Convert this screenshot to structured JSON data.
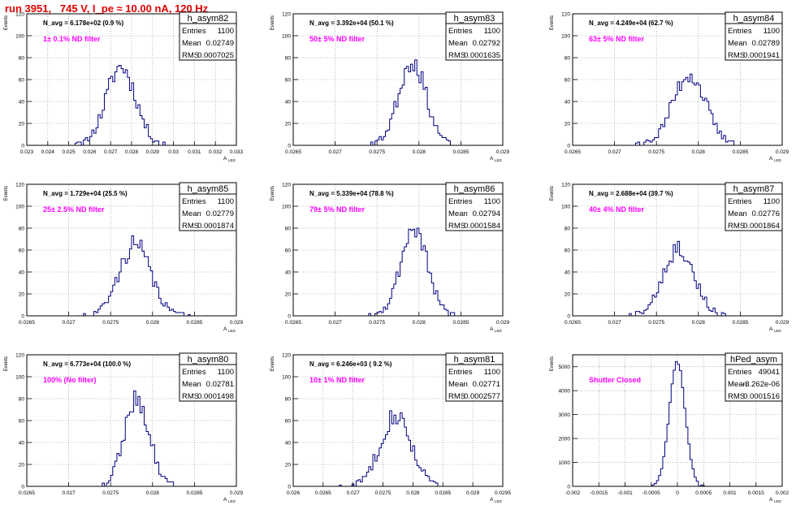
{
  "page": {
    "title": "run 3951,   745 V, I_pe ≈ 10.00 nA, 120 Hz"
  },
  "colors": {
    "histogram": "#000080",
    "title": "#e00000",
    "annotation": "#ff00ff",
    "grid": "#888888"
  },
  "chart_data": [
    {
      "type": "histogram",
      "hist_name": "h_asym82",
      "ylabel": "Events",
      "xlabel": "A",
      "xlabel_sub": "LED",
      "stats": {
        "entries_label": "Entries",
        "entries": "1100",
        "mean_label": "Mean",
        "mean": "0.02749",
        "rms_label": "RMS",
        "rms": "0.0007025"
      },
      "navg": "N_avg = 6.178e+02 (0.9 %)",
      "annotation": "1± 0.1% ND filter",
      "xlim": [
        0.023,
        0.033
      ],
      "ylim": [
        0,
        120
      ],
      "xticks": [
        "0.023",
        "0.024",
        "0.025",
        "0.026",
        "0.027",
        "0.028",
        "0.029",
        "0.03",
        "0.031",
        "0.032",
        "0.033"
      ],
      "yticks": [
        "0",
        "20",
        "40",
        "60",
        "80",
        "100",
        "120"
      ],
      "mean": 0.02749,
      "sigma": 0.0007025,
      "peak": 72,
      "seed": 11
    },
    {
      "type": "histogram",
      "hist_name": "h_asym83",
      "ylabel": "Events",
      "xlabel": "A",
      "xlabel_sub": "LED",
      "stats": {
        "entries_label": "Entries",
        "entries": "1100",
        "mean_label": "Mean",
        "mean": "0.02792",
        "rms_label": "RMS",
        "rms": "0.0001635"
      },
      "navg": "N_avg = 3.392e+04 (50.1 %)",
      "annotation": "50± 5% ND filter",
      "xlim": [
        0.0265,
        0.029
      ],
      "ylim": [
        0,
        120
      ],
      "xticks": [
        "0.0265",
        "0.027",
        "0.0275",
        "0.028",
        "0.0285",
        "0.029"
      ],
      "yticks": [
        "0",
        "20",
        "40",
        "60",
        "80",
        "100",
        "120"
      ],
      "mean": 0.02792,
      "sigma": 0.0001635,
      "peak": 77,
      "seed": 23
    },
    {
      "type": "histogram",
      "hist_name": "h_asym84",
      "ylabel": "Events",
      "xlabel": "A",
      "xlabel_sub": "LED",
      "stats": {
        "entries_label": "Entries",
        "entries": "1100",
        "mean_label": "Mean",
        "mean": "0.02789",
        "rms_label": "RMS",
        "rms": "0.0001941"
      },
      "navg": "N_avg = 4.249e+04 (62.7 %)",
      "annotation": "63± 5% ND filter",
      "xlim": [
        0.0265,
        0.029
      ],
      "ylim": [
        0,
        120
      ],
      "xticks": [
        "0.0265",
        "0.027",
        "0.0275",
        "0.028",
        "0.0285",
        "0.029"
      ],
      "yticks": [
        "0",
        "20",
        "40",
        "60",
        "80",
        "100",
        "120"
      ],
      "mean": 0.02789,
      "sigma": 0.0001941,
      "peak": 65,
      "seed": 37
    },
    {
      "type": "histogram",
      "hist_name": "h_asym85",
      "ylabel": "Events",
      "xlabel": "A",
      "xlabel_sub": "LED",
      "stats": {
        "entries_label": "Entries",
        "entries": "1100",
        "mean_label": "Mean",
        "mean": "0.02779",
        "rms_label": "RMS",
        "rms": "0.0001874"
      },
      "navg": "N_avg = 1.729e+04 (25.5 %)",
      "annotation": "25± 2.5% ND filter",
      "xlim": [
        0.0265,
        0.029
      ],
      "ylim": [
        0,
        120
      ],
      "xticks": [
        "0.0265",
        "0.027",
        "0.0275",
        "0.028",
        "0.0285",
        "0.029"
      ],
      "yticks": [
        "0",
        "20",
        "40",
        "60",
        "80",
        "100",
        "120"
      ],
      "mean": 0.02779,
      "sigma": 0.0001874,
      "peak": 65,
      "seed": 41
    },
    {
      "type": "histogram",
      "hist_name": "h_asym86",
      "ylabel": "Events",
      "xlabel": "A",
      "xlabel_sub": "LED",
      "stats": {
        "entries_label": "Entries",
        "entries": "1100",
        "mean_label": "Mean",
        "mean": "0.02794",
        "rms_label": "RMS",
        "rms": "0.0001584"
      },
      "navg": "N_avg = 5.339e+04 (78.8 %)",
      "annotation": "79± 5% ND filter",
      "xlim": [
        0.0265,
        0.029
      ],
      "ylim": [
        0,
        120
      ],
      "xticks": [
        "0.0265",
        "0.027",
        "0.0275",
        "0.028",
        "0.0285",
        "0.029"
      ],
      "yticks": [
        "0",
        "20",
        "40",
        "60",
        "80",
        "100",
        "120"
      ],
      "mean": 0.02794,
      "sigma": 0.0001584,
      "peak": 80,
      "seed": 53
    },
    {
      "type": "histogram",
      "hist_name": "h_asym87",
      "ylabel": "Events",
      "xlabel": "A",
      "xlabel_sub": "LED",
      "stats": {
        "entries_label": "Entries",
        "entries": "1100",
        "mean_label": "Mean",
        "mean": "0.02776",
        "rms_label": "RMS",
        "rms": "0.0001864"
      },
      "navg": "N_avg = 2.688e+04 (39.7 %)",
      "annotation": "40± 4% ND filter",
      "xlim": [
        0.0265,
        0.029
      ],
      "ylim": [
        0,
        120
      ],
      "xticks": [
        "0.0265",
        "0.027",
        "0.0275",
        "0.028",
        "0.0285",
        "0.029"
      ],
      "yticks": [
        "0",
        "20",
        "40",
        "60",
        "80",
        "100",
        "120"
      ],
      "mean": 0.02776,
      "sigma": 0.0001864,
      "peak": 62,
      "seed": 67
    },
    {
      "type": "histogram",
      "hist_name": "h_asym80",
      "ylabel": "Events",
      "xlabel": "A",
      "xlabel_sub": "LED",
      "stats": {
        "entries_label": "Entries",
        "entries": "1100",
        "mean_label": "Mean",
        "mean": "0.02781",
        "rms_label": "RMS",
        "rms": "0.0001498"
      },
      "navg": "N_avg = 6.773e+04 (100.0 %)",
      "annotation": "100% (No filter)",
      "xlim": [
        0.0265,
        0.029
      ],
      "ylim": [
        0,
        120
      ],
      "xticks": [
        "0.0265",
        "0.027",
        "0.0275",
        "0.028",
        "0.0285",
        "0.029"
      ],
      "yticks": [
        "0",
        "20",
        "40",
        "60",
        "80",
        "100",
        "120"
      ],
      "mean": 0.02781,
      "sigma": 0.0001498,
      "peak": 80,
      "seed": 79
    },
    {
      "type": "histogram",
      "hist_name": "h_asym81",
      "ylabel": "Events",
      "xlabel": "A",
      "xlabel_sub": "LED",
      "stats": {
        "entries_label": "Entries",
        "entries": "1100",
        "mean_label": "Mean",
        "mean": "0.02771",
        "rms_label": "RMS",
        "rms": "0.0002577"
      },
      "navg": "N_avg = 6.246e+03 ( 9.2 %)",
      "annotation": "10± 1% ND filter",
      "xlim": [
        0.026,
        0.0295
      ],
      "ylim": [
        0,
        120
      ],
      "xticks": [
        "0.026",
        "0.0265",
        "0.027",
        "0.0275",
        "0.028",
        "0.0285",
        "0.029",
        "0.0295"
      ],
      "yticks": [
        "0",
        "20",
        "40",
        "60",
        "80",
        "100",
        "120"
      ],
      "mean": 0.02771,
      "sigma": 0.0002577,
      "peak": 65,
      "seed": 83
    },
    {
      "type": "histogram",
      "hist_name": "hPed_asym",
      "ylabel": "Events",
      "xlabel": "A",
      "xlabel_sub": "LED",
      "stats": {
        "entries_label": "Entries",
        "entries": "49041",
        "mean_label": "Mean",
        "mean": "-3.262e-06",
        "rms_label": "RMS",
        "rms": "0.0001516"
      },
      "navg": "",
      "annotation": "Shutter Closed",
      "xlim": [
        -0.002,
        0.002
      ],
      "ylim": [
        0,
        5500
      ],
      "xticks": [
        "-0.002",
        "-0.0015",
        "-0.001",
        "-0.0005",
        "0",
        "0.0005",
        "0.001",
        "0.0015",
        "0.002"
      ],
      "yticks": [
        "0",
        "1000",
        "2000",
        "3000",
        "4000",
        "5000"
      ],
      "mean": -3.262e-06,
      "sigma": 0.0001516,
      "peak": 5200,
      "seed": 97
    }
  ]
}
